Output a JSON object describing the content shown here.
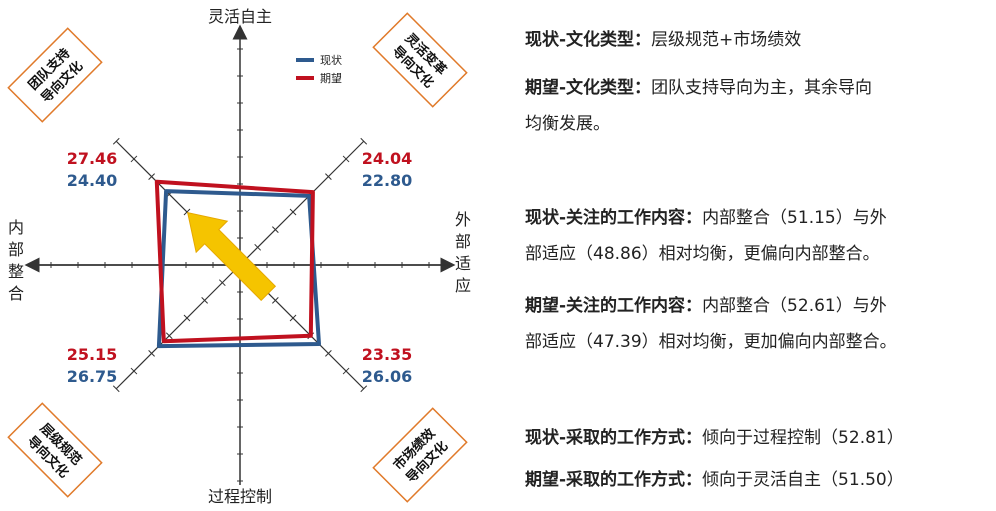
{
  "chart_data": {
    "type": "radar",
    "axes": {
      "top": "灵活自主",
      "bottom": "过程控制",
      "left": "内部整合",
      "right": "外部适应"
    },
    "quadrant_labels": {
      "top_left": [
        "团队支持",
        "导向文化"
      ],
      "top_right": [
        "灵活变革",
        "导向文化"
      ],
      "bottom_left": [
        "层级规范",
        "导向文化"
      ],
      "bottom_right": [
        "市场绩效",
        "导向文化"
      ]
    },
    "legend": [
      "现状",
      "期望"
    ],
    "series": [
      {
        "name": "现状",
        "color": "#2e5a8e",
        "values": {
          "top_left": 24.4,
          "top_right": 22.8,
          "bottom_right": 26.06,
          "bottom_left": 26.75
        },
        "labels": {
          "top_left": "24.40",
          "top_right": "22.80",
          "bottom_right": "26.06",
          "bottom_left": "26.75"
        }
      },
      {
        "name": "期望",
        "color": "#c0111f",
        "values": {
          "top_left": 27.46,
          "top_right": 24.04,
          "bottom_right": 23.35,
          "bottom_left": 25.15
        },
        "labels": {
          "top_left": "27.46",
          "top_right": "24.04",
          "bottom_right": "23.35",
          "bottom_left": "25.15"
        }
      }
    ],
    "scale_max": 35,
    "arrow_color": "#f5c400",
    "box_border_color": "#e07a2a"
  },
  "text_panel": {
    "line1": {
      "label": "现状-文化类型：",
      "text": "层级规范+市场绩效"
    },
    "line2": {
      "label": "期望-文化类型：",
      "text": "团队支持导向为主，其余导向",
      "text2": "均衡发展。"
    },
    "line3": {
      "label": "现状-关注的工作内容：",
      "text": "内部整合（51.15）与外",
      "text2": "部适应（48.86）相对均衡，更偏向内部整合。"
    },
    "line4": {
      "label": "期望-关注的工作内容：",
      "text": "内部整合（52.61）与外",
      "text2": "部适应（47.39）相对均衡，更加偏向内部整合。"
    },
    "line5": {
      "label": "现状-采取的工作方式：",
      "text": "倾向于过程控制（52.81）"
    },
    "line6": {
      "label": "期望-采取的工作方式：",
      "text": "倾向于灵活自主（51.50）"
    }
  }
}
